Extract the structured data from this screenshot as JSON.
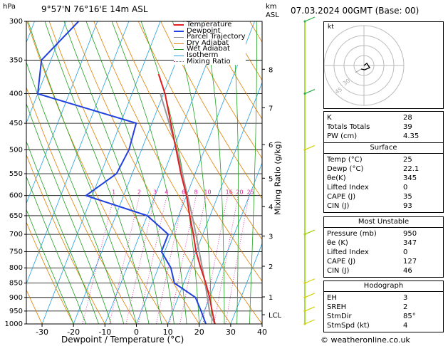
{
  "header": {
    "location": "9°57'N  76°16'E  14m  ASL",
    "datetime": "07.03.2024  00GMT  (Base: 00)",
    "hpa_label": "hPa",
    "km_label": "km",
    "asl_label": "ASL",
    "mixing_ratio_label": "Mixing Ratio (g/kg)",
    "credit": "© weatheronline.co.uk"
  },
  "chart_data": {
    "type": "skew-t",
    "xlabel": "Dewpoint / Temperature (°C)",
    "x_ticks": [
      -30,
      -20,
      -10,
      0,
      10,
      20,
      30,
      40
    ],
    "xlim": [
      -35,
      40
    ],
    "pressure_levels": [
      300,
      350,
      400,
      450,
      500,
      550,
      600,
      650,
      700,
      750,
      800,
      850,
      900,
      950,
      1000
    ],
    "ylim": [
      1000,
      300
    ],
    "yscale": "log",
    "km_ticks": [
      {
        "label": "8",
        "p": 363
      },
      {
        "label": "7",
        "p": 423
      },
      {
        "label": "6",
        "p": 490
      },
      {
        "label": "5",
        "p": 560
      },
      {
        "label": "4",
        "p": 627
      },
      {
        "label": "3",
        "p": 705
      },
      {
        "label": "2",
        "p": 795
      },
      {
        "label": "1",
        "p": 898
      },
      {
        "label": "LCL",
        "p": 964
      }
    ],
    "mixing_ratio_labels": [
      "1",
      "2",
      "3",
      "4",
      "6",
      "8",
      "10",
      "16",
      "20",
      "25"
    ],
    "mixing_ratio_values": [
      1,
      2,
      3,
      4,
      6,
      8,
      10,
      16,
      20,
      25
    ],
    "legend": [
      {
        "name": "Temperature",
        "color": "#e02020"
      },
      {
        "name": "Dewpoint",
        "color": "#2040e0"
      },
      {
        "name": "Parcel Trajectory",
        "color": "#909090"
      },
      {
        "name": "Dry Adiabat",
        "color": "#e08000"
      },
      {
        "name": "Wet Adiabat",
        "color": "#20a020"
      },
      {
        "name": "Isotherm",
        "color": "#20a0e0"
      },
      {
        "name": "Mixing Ratio",
        "color": "#e020a0"
      }
    ],
    "temperature": [
      {
        "p": 1000,
        "t": 25
      },
      {
        "p": 950,
        "t": 22.5
      },
      {
        "p": 900,
        "t": 20
      },
      {
        "p": 850,
        "t": 17
      },
      {
        "p": 800,
        "t": 13.5
      },
      {
        "p": 750,
        "t": 10
      },
      {
        "p": 700,
        "t": 7
      },
      {
        "p": 650,
        "t": 3.5
      },
      {
        "p": 600,
        "t": 0
      },
      {
        "p": 550,
        "t": -4.5
      },
      {
        "p": 500,
        "t": -9
      },
      {
        "p": 450,
        "t": -14
      },
      {
        "p": 400,
        "t": -19.5
      },
      {
        "p": 370,
        "t": -24
      }
    ],
    "dewpoint": [
      {
        "p": 1000,
        "t": 22.1
      },
      {
        "p": 950,
        "t": 19
      },
      {
        "p": 900,
        "t": 15.5
      },
      {
        "p": 850,
        "t": 7
      },
      {
        "p": 800,
        "t": 4
      },
      {
        "p": 750,
        "t": -1
      },
      {
        "p": 700,
        "t": -1
      },
      {
        "p": 650,
        "t": -10
      },
      {
        "p": 600,
        "t": -32
      },
      {
        "p": 550,
        "t": -25
      },
      {
        "p": 500,
        "t": -24
      },
      {
        "p": 450,
        "t": -25
      },
      {
        "p": 400,
        "t": -60
      },
      {
        "p": 350,
        "t": -63
      },
      {
        "p": 300,
        "t": -56
      }
    ],
    "parcel": [
      {
        "p": 1000,
        "t": 25
      },
      {
        "p": 964,
        "t": 22.3
      },
      {
        "p": 900,
        "t": 19.3
      },
      {
        "p": 850,
        "t": 16.8
      },
      {
        "p": 800,
        "t": 14
      },
      {
        "p": 750,
        "t": 11
      },
      {
        "p": 700,
        "t": 7.8
      },
      {
        "p": 650,
        "t": 4.3
      },
      {
        "p": 600,
        "t": 0.3
      },
      {
        "p": 550,
        "t": -4
      },
      {
        "p": 500,
        "t": -8.8
      },
      {
        "p": 450,
        "t": -14.5
      },
      {
        "p": 400,
        "t": -21
      }
    ]
  },
  "hodograph": {
    "label": "kt",
    "ring_labels": [
      "30",
      "45"
    ]
  },
  "indices": [
    {
      "label": "K",
      "value": "28"
    },
    {
      "label": "Totals Totals",
      "value": "39"
    },
    {
      "label": "PW (cm)",
      "value": "4.35"
    }
  ],
  "surface": {
    "title": "Surface",
    "rows": [
      {
        "label": "Temp (°C)",
        "value": "25"
      },
      {
        "label": "Dewp (°C)",
        "value": "22.1"
      },
      {
        "label": "θe(K)",
        "value": "345"
      },
      {
        "label": "Lifted Index",
        "value": "0"
      },
      {
        "label": "CAPE (J)",
        "value": "35"
      },
      {
        "label": "CIN (J)",
        "value": "93"
      }
    ]
  },
  "most_unstable": {
    "title": "Most Unstable",
    "rows": [
      {
        "label": "Pressure (mb)",
        "value": "950"
      },
      {
        "label": "θe (K)",
        "value": "347"
      },
      {
        "label": "Lifted Index",
        "value": "0"
      },
      {
        "label": "CAPE (J)",
        "value": "127"
      },
      {
        "label": "CIN (J)",
        "value": "46"
      }
    ]
  },
  "hodograph_table": {
    "title": "Hodograph",
    "rows": [
      {
        "label": "EH",
        "value": "3"
      },
      {
        "label": "SREH",
        "value": "2"
      },
      {
        "label": "StmDir",
        "value": "85°"
      },
      {
        "label": "StmSpd (kt)",
        "value": "4"
      }
    ]
  }
}
